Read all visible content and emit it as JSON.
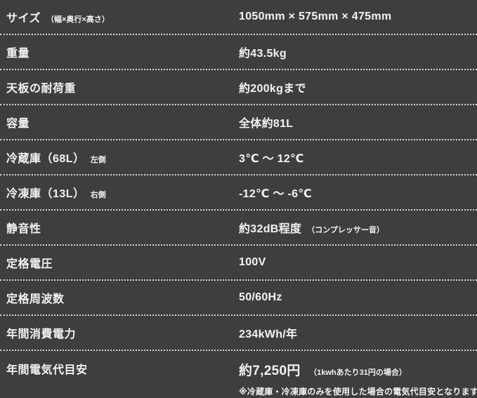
{
  "page": {
    "background_color": "#3f3e3e",
    "text_color": "#f4f3f1",
    "divider_color": "#f0f0f0"
  },
  "spec_table": {
    "rows": [
      {
        "label": "サイズ",
        "label_note": "（幅×奥行×高さ）",
        "value": "1050mm × 575mm × 475mm",
        "value_note": ""
      },
      {
        "label": "重量",
        "label_note": "",
        "value": "約43.5kg",
        "value_note": ""
      },
      {
        "label": "天板の耐荷重",
        "label_note": "",
        "value": "約200kgまで",
        "value_note": ""
      },
      {
        "label": "容量",
        "label_note": "",
        "value": "全体約81L",
        "value_note": ""
      },
      {
        "label": "冷蔵庫（68L）",
        "label_note": "左側",
        "value": "3℃ ～ 12℃",
        "value_note": ""
      },
      {
        "label": "冷凍庫（13L）",
        "label_note": "右側",
        "value": "-12℃ ～ -6℃",
        "value_note": ""
      },
      {
        "label": "静音性",
        "label_note": "",
        "value": "約32dB程度",
        "value_note": "（コンプレッサー音）"
      },
      {
        "label": "定格電圧",
        "label_note": "",
        "value": "100V",
        "value_note": ""
      },
      {
        "label": "定格周波数",
        "label_note": "",
        "value": "50/60Hz",
        "value_note": ""
      },
      {
        "label": "年間消費電力",
        "label_note": "",
        "value": "234kWh/年",
        "value_note": ""
      },
      {
        "label": "年間電気代目安",
        "label_note": "",
        "value": "約7,250円",
        "value_note": "（1kwhあたり31円の場合）",
        "footnote": "※冷蔵庫・冷凍庫のみを使用した場合の電気代目安となります。"
      }
    ]
  }
}
